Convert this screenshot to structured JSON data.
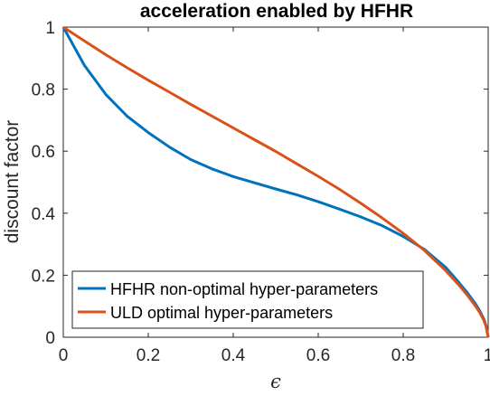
{
  "chart_data": {
    "type": "line",
    "title": "acceleration enabled by HFHR",
    "xlabel": "ϵ",
    "ylabel": "discount factor",
    "xlim": [
      0,
      1
    ],
    "ylim": [
      0,
      1
    ],
    "xticks": [
      0,
      0.2,
      0.4,
      0.6,
      0.8,
      1
    ],
    "xtick_labels": [
      "0",
      "0.2",
      "0.4",
      "0.6",
      "0.8",
      "1"
    ],
    "yticks": [
      0,
      0.2,
      0.4,
      0.6,
      0.8,
      1
    ],
    "ytick_labels": [
      "0",
      "0.2",
      "0.4",
      "0.6",
      "0.8",
      "1"
    ],
    "grid": false,
    "legend_position": "bottom-left",
    "series": [
      {
        "name": "HFHR non-optimal hyper-parameters",
        "color": "#0072bd",
        "x": [
          0,
          0.05,
          0.1,
          0.15,
          0.2,
          0.25,
          0.3,
          0.35,
          0.4,
          0.45,
          0.5,
          0.55,
          0.6,
          0.65,
          0.7,
          0.75,
          0.8,
          0.85,
          0.9,
          0.93,
          0.95,
          0.97,
          0.98,
          0.99,
          0.995,
          1.0
        ],
        "y": [
          1.0,
          0.876,
          0.783,
          0.713,
          0.66,
          0.613,
          0.573,
          0.543,
          0.518,
          0.498,
          0.478,
          0.459,
          0.437,
          0.413,
          0.388,
          0.36,
          0.325,
          0.283,
          0.225,
          0.178,
          0.145,
          0.108,
          0.085,
          0.058,
          0.038,
          0.0
        ]
      },
      {
        "name": "ULD optimal hyper-parameters",
        "color": "#d95319",
        "x": [
          0,
          0.05,
          0.1,
          0.15,
          0.2,
          0.25,
          0.3,
          0.35,
          0.4,
          0.45,
          0.5,
          0.55,
          0.6,
          0.65,
          0.7,
          0.75,
          0.8,
          0.85,
          0.9,
          0.93,
          0.95,
          0.97,
          0.98,
          0.99,
          0.995,
          1.0
        ],
        "y": [
          1.0,
          0.955,
          0.911,
          0.869,
          0.829,
          0.79,
          0.751,
          0.713,
          0.675,
          0.637,
          0.599,
          0.559,
          0.519,
          0.477,
          0.432,
          0.385,
          0.335,
          0.28,
          0.215,
          0.17,
          0.137,
          0.101,
          0.08,
          0.054,
          0.035,
          0.0
        ]
      }
    ]
  }
}
